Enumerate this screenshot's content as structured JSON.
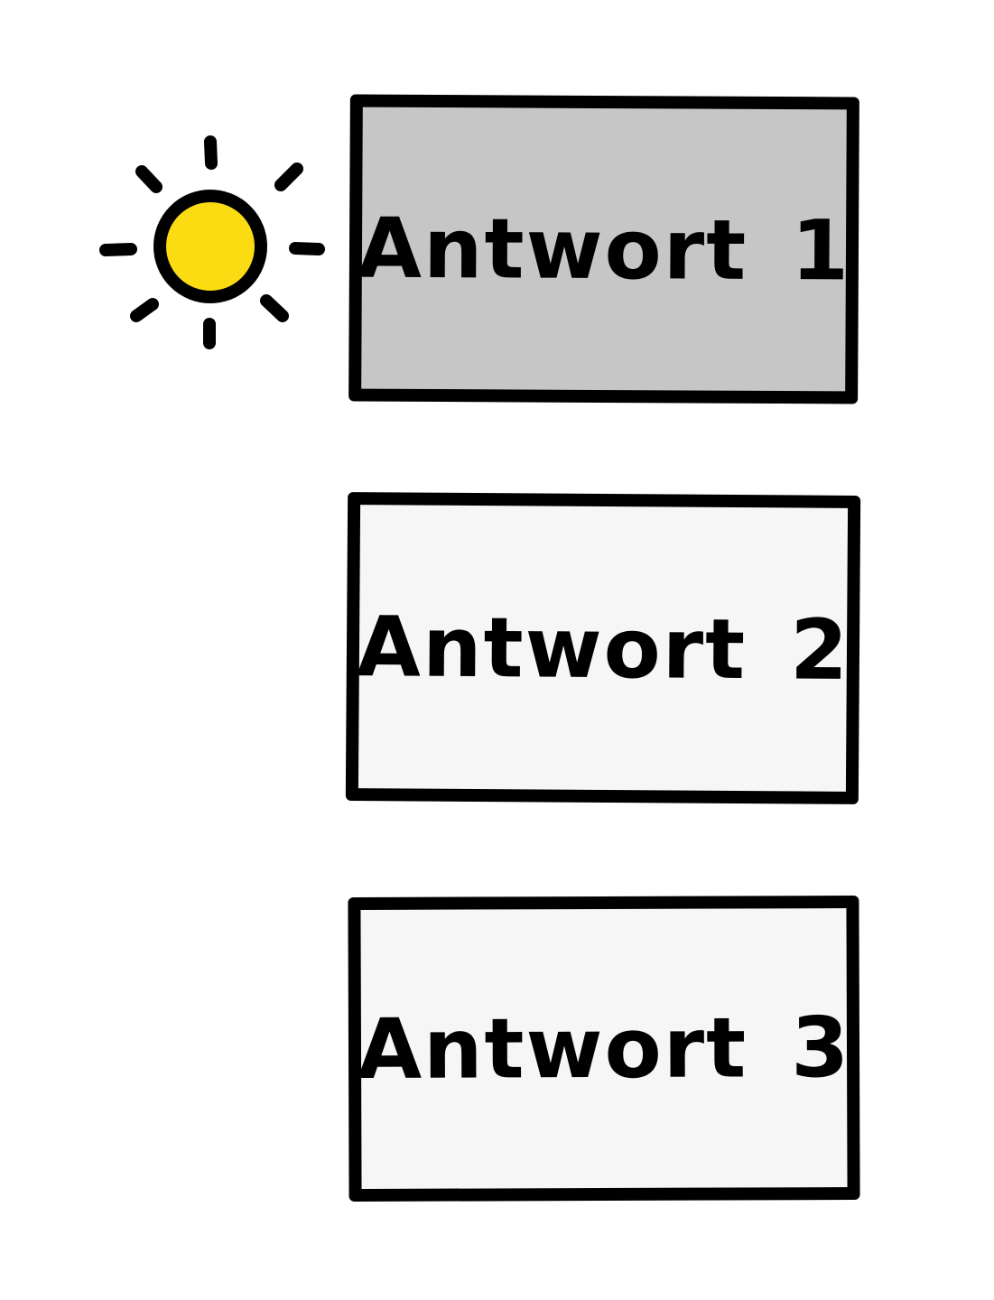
{
  "highlight_icon": "sun-icon",
  "answers": [
    {
      "label": "Antwort 1",
      "selected": true
    },
    {
      "label": "Antwort 2",
      "selected": false
    },
    {
      "label": "Antwort 3",
      "selected": false
    }
  ],
  "colors": {
    "selected_fill": "#c6c6c6",
    "unselected_fill": "#f6f6f6",
    "border": "#000000",
    "sun_fill": "#fbdc12"
  }
}
